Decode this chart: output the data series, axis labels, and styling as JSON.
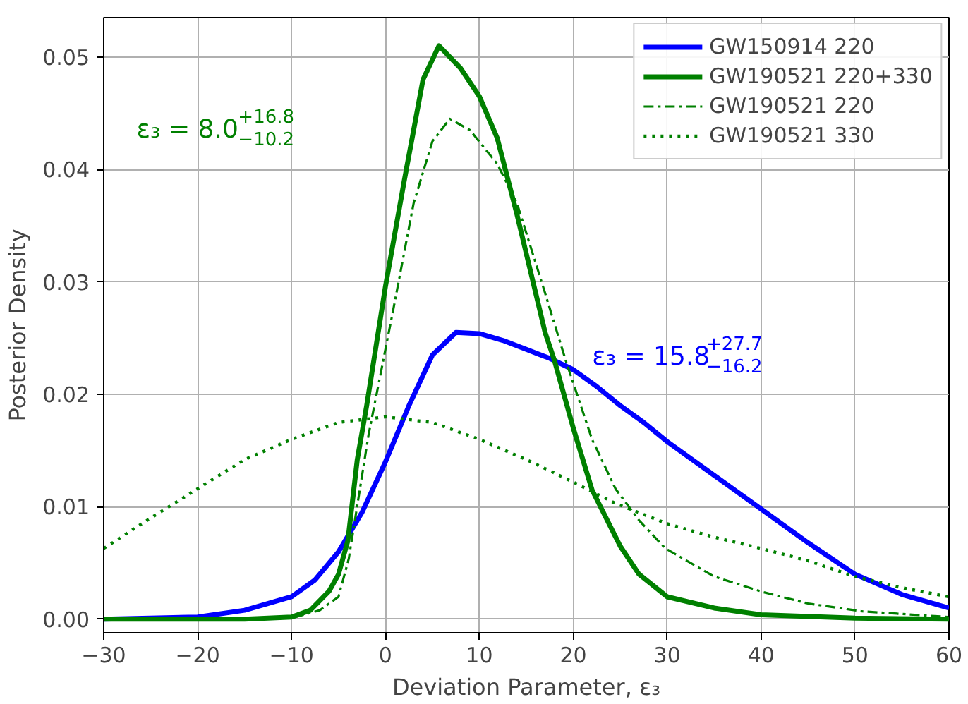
{
  "chart_data": {
    "type": "line",
    "xlabel": "Deviation Parameter, ε₃",
    "ylabel": "Posterior Density",
    "xlim": [
      -30,
      60
    ],
    "ylim": [
      -0.0012,
      0.0535
    ],
    "xticks": [
      {
        "value": -30,
        "label": "−30"
      },
      {
        "value": -20,
        "label": "−20"
      },
      {
        "value": -10,
        "label": "−10"
      },
      0,
      10,
      20,
      30,
      40,
      50,
      60
    ],
    "yticks": [
      {
        "value": 0,
        "label": "0.00"
      },
      {
        "value": 0.01,
        "label": "0.01"
      },
      {
        "value": 0.02,
        "label": "0.02"
      },
      {
        "value": 0.03,
        "label": "0.03"
      },
      {
        "value": 0.04,
        "label": "0.04"
      },
      {
        "value": 0.05,
        "label": "0.05"
      }
    ],
    "grid": true,
    "legend": "top right",
    "annotations": [
      "ε₃ = 8.0$^{+16.8}$$_{−10.2}$",
      "ε₃ = 15.8$^{+27.7}$$_{−16.2}$"
    ],
    "series": [
      {
        "name": "GW150914 220",
        "color": "#0000ff",
        "line_style": "solid",
        "x": [
          -30,
          -20,
          -15,
          -10,
          -7.5,
          -5,
          -2.5,
          0,
          2.5,
          5,
          7.5,
          10,
          12.5,
          15,
          17.5,
          20,
          22.5,
          25,
          27.5,
          30,
          35,
          40,
          45,
          50,
          55,
          60
        ],
        "values": [
          0,
          0.0002,
          0.0008,
          0.002,
          0.0035,
          0.006,
          0.0095,
          0.014,
          0.019,
          0.0235,
          0.0255,
          0.0254,
          0.0248,
          0.024,
          0.0232,
          0.0222,
          0.0207,
          0.019,
          0.0175,
          0.0158,
          0.0128,
          0.0098,
          0.0068,
          0.004,
          0.0022,
          0.001
        ]
      },
      {
        "name": "GW190521 220+330",
        "color": "#008000",
        "line_style": "solid",
        "x": [
          -30,
          -15,
          -10,
          -8,
          -6,
          -5,
          -4,
          -3,
          -2,
          0,
          2,
          4,
          5.7,
          8,
          10,
          11.9,
          14,
          17,
          18,
          20,
          22,
          25,
          27,
          30,
          35,
          40,
          50,
          60
        ],
        "values": [
          0,
          0,
          0.0002,
          0.0008,
          0.0025,
          0.004,
          0.007,
          0.0142,
          0.019,
          0.0296,
          0.039,
          0.048,
          0.051,
          0.049,
          0.0465,
          0.0428,
          0.036,
          0.0255,
          0.023,
          0.017,
          0.0115,
          0.0065,
          0.004,
          0.002,
          0.001,
          0.0004,
          0.0001,
          0
        ]
      },
      {
        "name": "GW190521 220",
        "color": "#008000",
        "line_style": "dashdot",
        "x": [
          -30,
          -10,
          -7,
          -5,
          -3.9,
          -1.8,
          0.8,
          3,
          5,
          6.85,
          9,
          11.9,
          14,
          17,
          19.2,
          22,
          24.5,
          27,
          29.8,
          35,
          40.3,
          45,
          50.8,
          60
        ],
        "values": [
          0,
          0.0001,
          0.0008,
          0.002,
          0.0054,
          0.0164,
          0.0274,
          0.037,
          0.0425,
          0.0445,
          0.0435,
          0.0405,
          0.037,
          0.029,
          0.023,
          0.016,
          0.0116,
          0.0088,
          0.0063,
          0.0038,
          0.0024,
          0.0014,
          0.0007,
          0.0002
        ]
      },
      {
        "name": "GW190521 330",
        "color": "#008000",
        "line_style": "dotted",
        "x": [
          -30,
          -25,
          -20,
          -15,
          -10,
          -5,
          0,
          5,
          10,
          15,
          20,
          24.5,
          30,
          35,
          40,
          45,
          50,
          55,
          60
        ],
        "values": [
          0.0063,
          0.009,
          0.0116,
          0.0142,
          0.016,
          0.0175,
          0.018,
          0.0175,
          0.016,
          0.0142,
          0.0122,
          0.0103,
          0.0085,
          0.0073,
          0.0063,
          0.0052,
          0.0038,
          0.0028,
          0.002
        ]
      }
    ]
  }
}
